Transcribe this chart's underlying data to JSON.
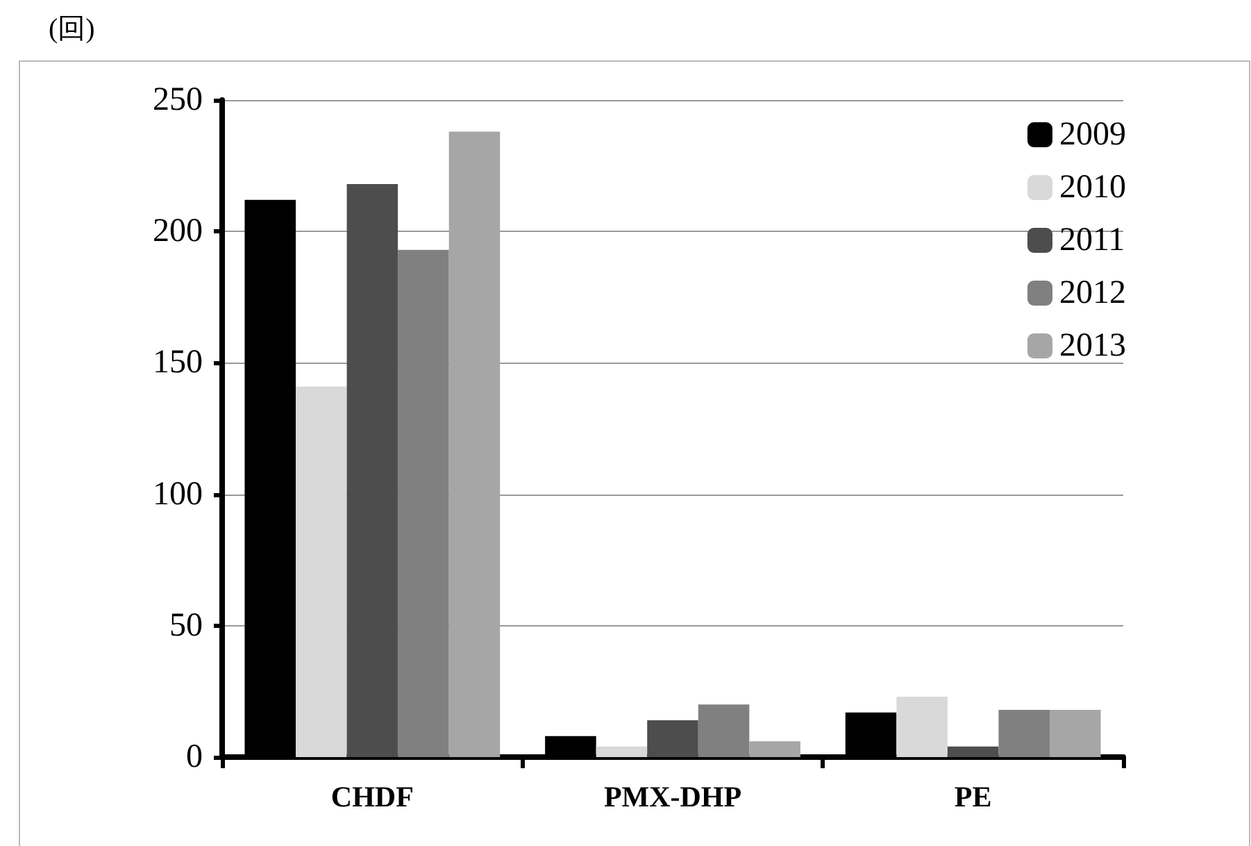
{
  "chart_data": {
    "type": "bar",
    "ylabel": "(回)",
    "categories": [
      "CHDF",
      "PMX-DHP",
      "PE"
    ],
    "series": [
      {
        "name": "2009",
        "color": "#000000",
        "values": [
          212,
          8,
          17
        ]
      },
      {
        "name": "2010",
        "color": "#d9d9d9",
        "values": [
          141,
          4,
          23
        ]
      },
      {
        "name": "2011",
        "color": "#4d4d4d",
        "values": [
          218,
          14,
          4
        ]
      },
      {
        "name": "2012",
        "color": "#808080",
        "values": [
          193,
          20,
          18
        ]
      },
      {
        "name": "2013",
        "color": "#a6a6a6",
        "values": [
          238,
          6,
          18
        ]
      }
    ],
    "ylim": [
      0,
      250
    ],
    "yticks": [
      0,
      50,
      100,
      150,
      200,
      250
    ],
    "grid": "y",
    "legend": "top right"
  }
}
